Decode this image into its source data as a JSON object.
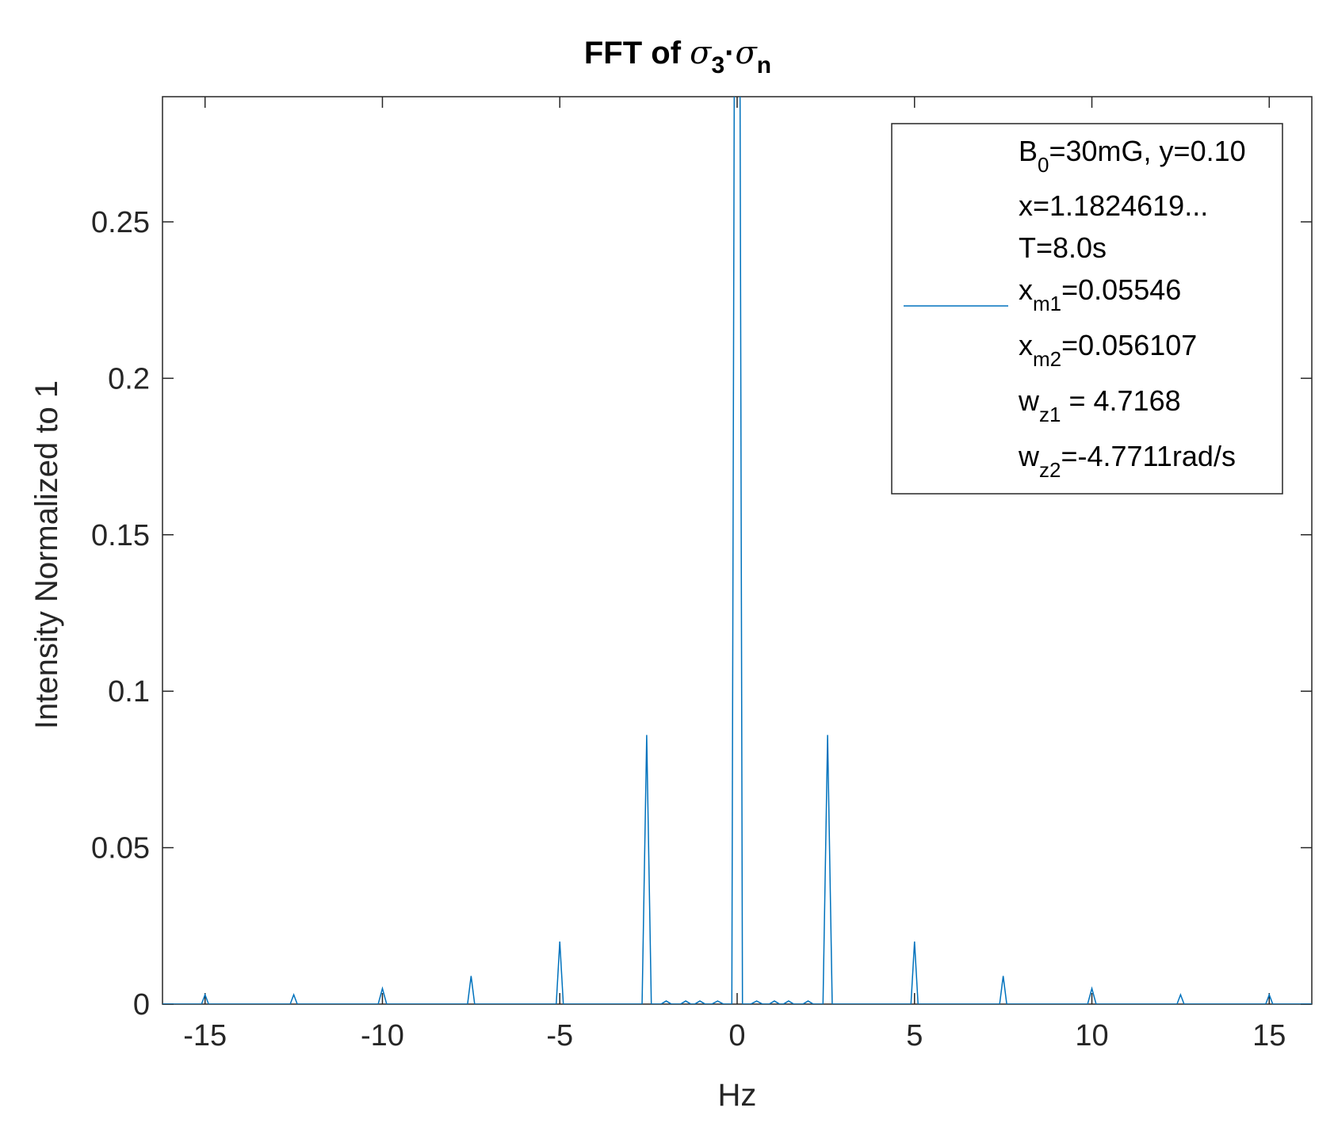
{
  "chart_data": {
    "type": "line",
    "title": {
      "prefix": "FFT of ",
      "sym1": "σ",
      "sub1": "3",
      "dot": "·",
      "sym2": "σ",
      "sub2": "n"
    },
    "xlabel": "Hz",
    "ylabel": "Intensity Normalized to 1",
    "xlim": [
      -16.2,
      16.2
    ],
    "ylim": [
      0,
      0.29
    ],
    "xticks": [
      -15,
      -10,
      -5,
      0,
      5,
      10,
      15
    ],
    "yticks": [
      0,
      0.05,
      0.1,
      0.15,
      0.2,
      0.25
    ],
    "ytick_labels": [
      "0",
      "0.05",
      "0.1",
      "0.15",
      "0.2",
      "0.25"
    ],
    "grid": false,
    "legend_position": "top-right",
    "line_color": "#0072BD",
    "legend": [
      {
        "base": "B",
        "sub": "0",
        "rest": "=30mG, y=0.10"
      },
      {
        "base": "x=1.1824619...",
        "sub": "",
        "rest": ""
      },
      {
        "base": "T=8.0s",
        "sub": "",
        "rest": ""
      },
      {
        "base": "x",
        "sub": "m1",
        "rest": "=0.05546"
      },
      {
        "base": "x",
        "sub": "m2",
        "rest": "=0.056107"
      },
      {
        "base": "w",
        "sub": "z1",
        "rest": " = 4.7168"
      },
      {
        "base": "w",
        "sub": "z2",
        "rest": "=-4.7711rad/s"
      }
    ],
    "series": [
      {
        "x": [
          -16.2,
          -15.1,
          -15.0,
          -14.9,
          -12.6,
          -12.5,
          -12.4,
          -10.12,
          -10.0,
          -9.88,
          -7.6,
          -7.5,
          -7.4,
          -5.1,
          -5.0,
          -4.9,
          -2.68,
          -2.55,
          -2.42,
          -2.15,
          -2.0,
          -1.85,
          -1.6,
          -1.45,
          -1.3,
          -1.2,
          -1.05,
          -0.9,
          -0.72,
          -0.55,
          -0.38,
          -0.15,
          -0.08,
          0.0,
          0.08,
          0.15,
          0.38,
          0.55,
          0.72,
          0.9,
          1.05,
          1.2,
          1.3,
          1.45,
          1.6,
          1.85,
          2.0,
          2.15,
          2.42,
          2.55,
          2.68,
          4.9,
          5.0,
          5.1,
          7.4,
          7.5,
          7.6,
          9.88,
          10.0,
          10.12,
          12.4,
          12.5,
          12.6,
          14.9,
          15.0,
          15.1,
          16.2
        ],
        "y": [
          0,
          0,
          0.003,
          0,
          0,
          0.003,
          0,
          0,
          0.005,
          0,
          0,
          0.009,
          0,
          0,
          0.02,
          0,
          0,
          0.086,
          0,
          0,
          0.001,
          0,
          0,
          0.001,
          0,
          0,
          0.001,
          0,
          0,
          0.001,
          0,
          0,
          0.3,
          0.3,
          0.3,
          0,
          0,
          0.001,
          0,
          0,
          0.001,
          0,
          0,
          0.001,
          0,
          0,
          0.001,
          0,
          0,
          0.086,
          0,
          0,
          0.02,
          0,
          0,
          0.009,
          0,
          0,
          0.005,
          0,
          0,
          0.003,
          0,
          0,
          0.003,
          0,
          0
        ]
      }
    ]
  }
}
